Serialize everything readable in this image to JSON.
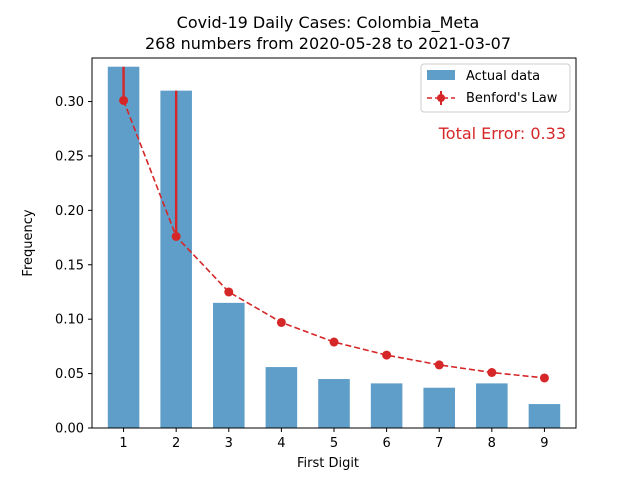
{
  "chart_data": {
    "type": "bar",
    "title_line1": "Covid-19 Daily Cases: Colombia_Meta",
    "title_line2": "268 numbers from 2020-05-28 to 2021-03-07",
    "xlabel": "First Digit",
    "ylabel": "Frequency",
    "categories": [
      "1",
      "2",
      "3",
      "4",
      "5",
      "6",
      "7",
      "8",
      "9"
    ],
    "ylim": [
      0,
      0.34
    ],
    "yticks": [
      0.0,
      0.05,
      0.1,
      0.15,
      0.2,
      0.25,
      0.3
    ],
    "ytick_labels": [
      "0.00",
      "0.05",
      "0.10",
      "0.15",
      "0.20",
      "0.25",
      "0.30"
    ],
    "series": [
      {
        "name": "Actual data",
        "kind": "bar",
        "values": [
          0.332,
          0.31,
          0.115,
          0.056,
          0.045,
          0.041,
          0.037,
          0.041,
          0.022
        ]
      },
      {
        "name": "Benford's Law",
        "kind": "line-with-error",
        "values": [
          0.301,
          0.176,
          0.125,
          0.097,
          0.079,
          0.067,
          0.058,
          0.051,
          0.046
        ]
      }
    ],
    "annotation": "Total Error: 0.33",
    "legend_position": "top-right",
    "colors": {
      "bar": "#5f9ec8",
      "benford": "#d62728",
      "annotation": "#d62728"
    }
  }
}
